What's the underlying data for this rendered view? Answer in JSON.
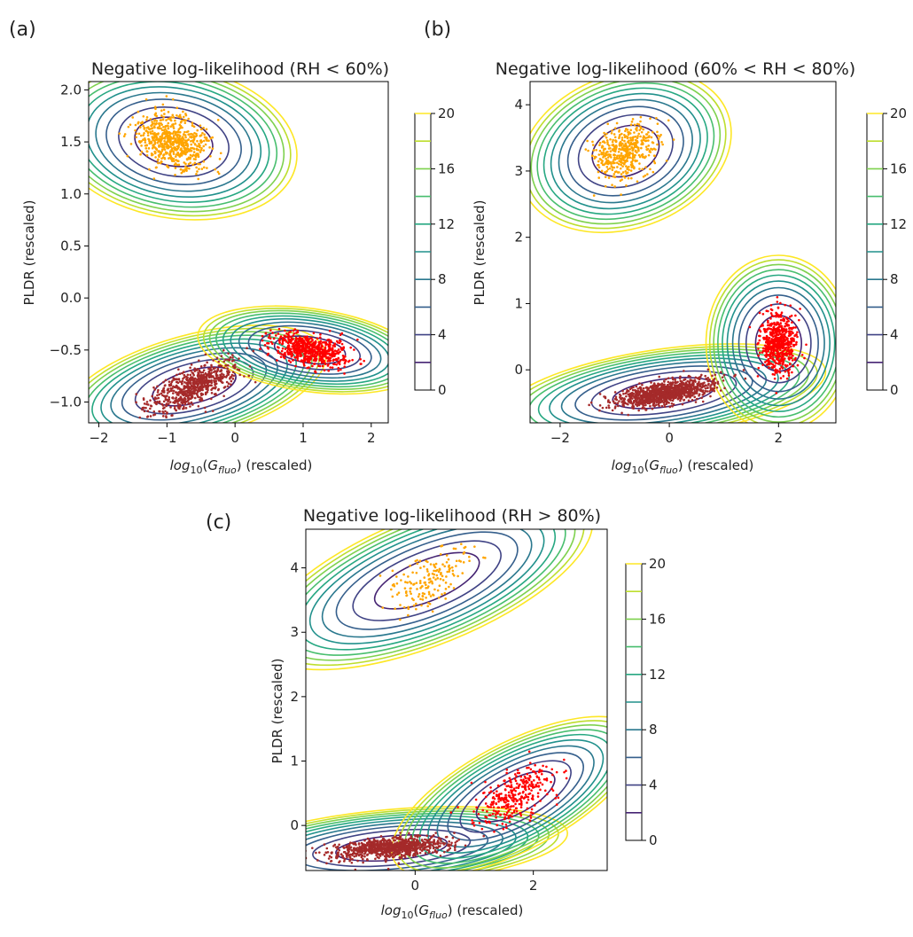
{
  "chart_data": [
    {
      "panel": "(a)",
      "type": "contour",
      "title": "Negative log-likelihood (RH < 60%)",
      "xlabel_main": "log",
      "xlabel_sub1": "10",
      "xlabel_paren_open": "(",
      "xlabel_var": "G",
      "xlabel_sub2": "fluo",
      "xlabel_rest": ") (rescaled)",
      "ylabel": "PLDR (rescaled)",
      "xlim": [
        -2.15,
        2.25
      ],
      "ylim": [
        -1.2,
        2.08
      ],
      "xticks": [
        "-2",
        "-1",
        "0",
        "1",
        "2"
      ],
      "xtick_values": [
        -2,
        -1,
        0,
        1,
        2
      ],
      "yticks": [
        "-1.0",
        "-0.5",
        "0.0",
        "0.5",
        "1.0",
        "1.5",
        "2.0"
      ],
      "ytick_values": [
        -1.0,
        -0.5,
        0.0,
        0.5,
        1.0,
        1.5,
        2.0
      ],
      "colorbar": {
        "ticks": [
          "0",
          "4",
          "8",
          "12",
          "16",
          "20"
        ],
        "tick_values": [
          0,
          4,
          8,
          12,
          16,
          20
        ],
        "levels": [
          2,
          4,
          6,
          8,
          10,
          12,
          14,
          16,
          18,
          20
        ],
        "range": [
          0,
          20
        ]
      },
      "components": [
        {
          "center": [
            -0.9,
            1.5
          ],
          "sx": 0.55,
          "sy": 0.22,
          "rot": -10,
          "color": "#ffa500",
          "n_points": 650,
          "spread": [
            0.5,
            0.22
          ]
        },
        {
          "center": [
            -0.6,
            -0.85
          ],
          "sx": 0.6,
          "sy": 0.15,
          "rot": 15,
          "color": "#a52a2a",
          "n_points": 700,
          "spread": [
            0.6,
            0.15
          ]
        },
        {
          "center": [
            1.1,
            -0.5
          ],
          "sx": 0.5,
          "sy": 0.12,
          "rot": -8,
          "color": "#ff0000",
          "n_points": 650,
          "spread": [
            0.5,
            0.12
          ]
        }
      ]
    },
    {
      "panel": "(b)",
      "type": "contour",
      "title": "Negative log-likelihood (60% < RH < 80%)",
      "xlabel_main": "log",
      "xlabel_sub1": "10",
      "xlabel_paren_open": "(",
      "xlabel_var": "G",
      "xlabel_sub2": "fluo",
      "xlabel_rest": ") (rescaled)",
      "ylabel": "PLDR (rescaled)",
      "xlim": [
        -2.55,
        3.05
      ],
      "ylim": [
        -0.8,
        4.35
      ],
      "xticks": [
        "-2",
        "0",
        "2"
      ],
      "xtick_values": [
        -2,
        0,
        2
      ],
      "yticks": [
        "0",
        "1",
        "2",
        "3",
        "4"
      ],
      "ytick_values": [
        0,
        1,
        2,
        3,
        4
      ],
      "colorbar": {
        "ticks": [
          "0",
          "4",
          "8",
          "12",
          "16",
          "20"
        ],
        "tick_values": [
          0,
          4,
          8,
          12,
          16,
          20
        ],
        "levels": [
          2,
          4,
          6,
          8,
          10,
          12,
          14,
          16,
          18,
          20
        ],
        "range": [
          0,
          20
        ]
      },
      "components": [
        {
          "center": [
            -0.8,
            3.3
          ],
          "sx": 0.6,
          "sy": 0.35,
          "rot": 20,
          "color": "#ffa500",
          "n_points": 450,
          "spread": [
            0.55,
            0.35
          ]
        },
        {
          "center": [
            -0.1,
            -0.35
          ],
          "sx": 0.9,
          "sy": 0.2,
          "rot": 8,
          "color": "#a52a2a",
          "n_points": 1100,
          "spread": [
            0.8,
            0.15
          ]
        },
        {
          "center": [
            2.0,
            0.4
          ],
          "sx": 0.4,
          "sy": 0.4,
          "rot": 0,
          "color": "#ff0000",
          "n_points": 600,
          "spread": [
            0.3,
            0.4
          ]
        }
      ]
    },
    {
      "panel": "(c)",
      "type": "contour",
      "title": "Negative log-likelihood (RH > 80%)",
      "xlabel_main": "log",
      "xlabel_sub1": "10",
      "xlabel_paren_open": "(",
      "xlabel_var": "G",
      "xlabel_sub2": "fluo",
      "xlabel_rest": ") (rescaled)",
      "ylabel": "PLDR (rescaled)",
      "xlim": [
        -1.85,
        3.25
      ],
      "ylim": [
        -0.7,
        4.6
      ],
      "xticks": [
        "0",
        "2"
      ],
      "xtick_values": [
        0,
        2
      ],
      "yticks": [
        "0",
        "1",
        "2",
        "3",
        "4"
      ],
      "ytick_values": [
        0,
        1,
        2,
        3,
        4
      ],
      "colorbar": {
        "ticks": [
          "0",
          "4",
          "8",
          "12",
          "16",
          "20"
        ],
        "tick_values": [
          0,
          4,
          8,
          12,
          16,
          20
        ],
        "levels": [
          2,
          4,
          6,
          8,
          10,
          12,
          14,
          16,
          18,
          20
        ],
        "range": [
          0,
          20
        ]
      },
      "components": [
        {
          "center": [
            0.2,
            3.8
          ],
          "sx": 0.9,
          "sy": 0.3,
          "rot": 22,
          "color": "#ffa500",
          "n_points": 170,
          "spread": [
            0.7,
            0.35
          ]
        },
        {
          "center": [
            -0.4,
            -0.35
          ],
          "sx": 0.9,
          "sy": 0.18,
          "rot": 5,
          "color": "#a52a2a",
          "n_points": 900,
          "spread": [
            0.85,
            0.14
          ]
        },
        {
          "center": [
            1.7,
            0.45
          ],
          "sx": 0.7,
          "sy": 0.25,
          "rot": 28,
          "color": "#ff0000",
          "n_points": 320,
          "spread": [
            0.7,
            0.3
          ]
        }
      ]
    }
  ]
}
